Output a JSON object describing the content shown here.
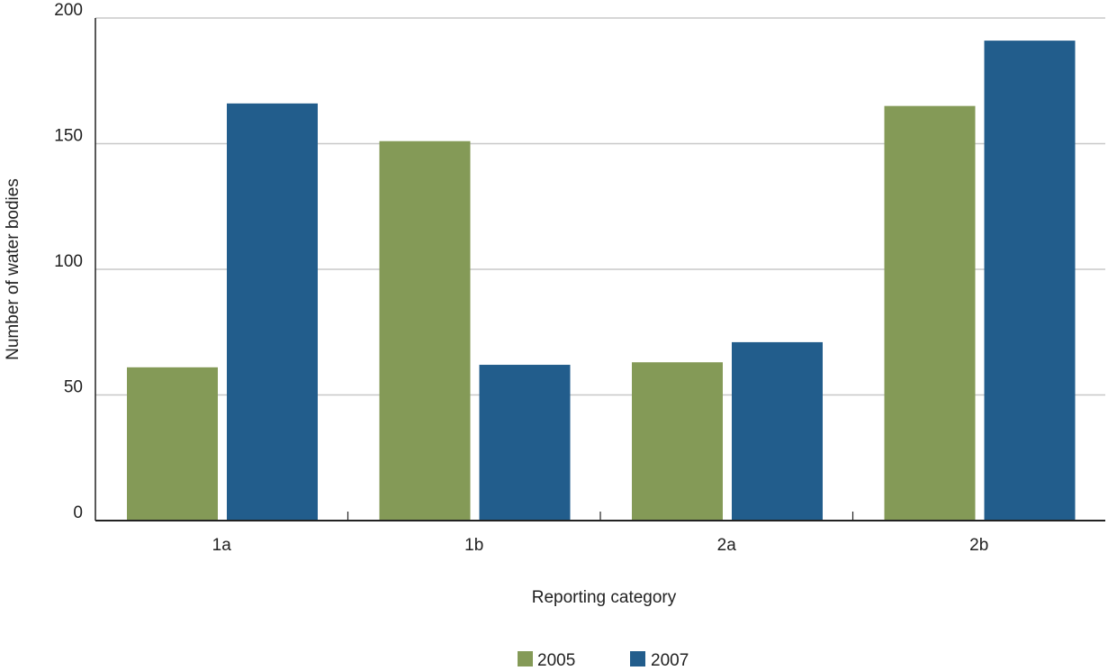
{
  "chart_data": {
    "type": "bar",
    "title": "",
    "xlabel": "Reporting category",
    "ylabel": "Number of water bodies",
    "categories": [
      "1a",
      "1b",
      "2a",
      "2b"
    ],
    "ylim": [
      0,
      200
    ],
    "yticks": [
      0,
      50,
      100,
      150,
      200
    ],
    "grid": true,
    "legend_position": "bottom-center",
    "series": [
      {
        "name": "2005",
        "color": "#849a57",
        "values": [
          61,
          151,
          63,
          165
        ]
      },
      {
        "name": "2007",
        "color": "#225d8c",
        "values": [
          166,
          62,
          71,
          191
        ]
      }
    ]
  }
}
